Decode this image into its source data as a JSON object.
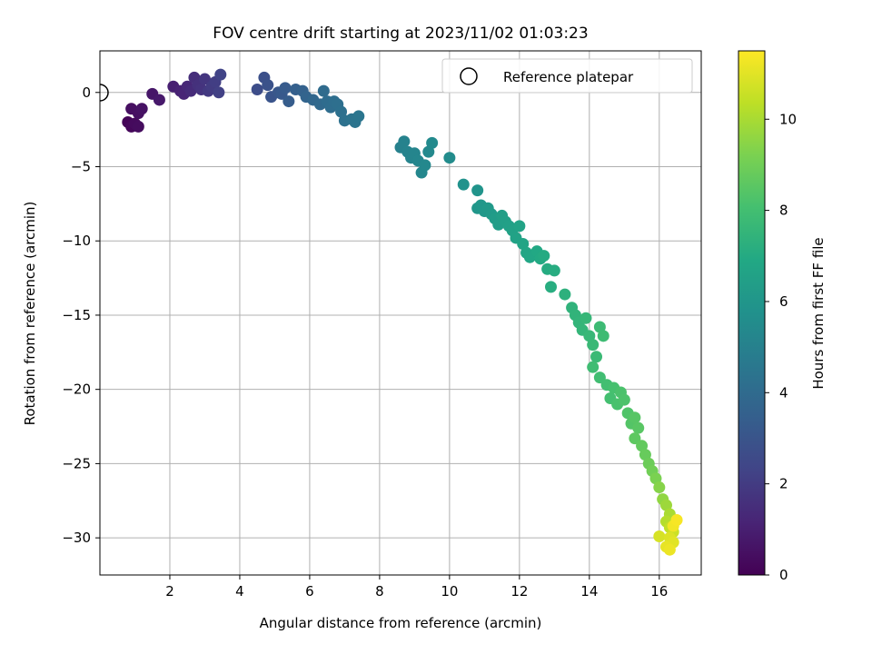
{
  "chart_data": {
    "type": "scatter",
    "title": "FOV centre drift starting at 2023/11/02 01:03:23",
    "xlabel": "Angular distance from reference (arcmin)",
    "ylabel": "Rotation from reference (arcmin)",
    "xlim": [
      0,
      17.2
    ],
    "ylim": [
      -32.5,
      2.8
    ],
    "xticks": [
      2,
      4,
      6,
      8,
      10,
      12,
      14,
      16
    ],
    "yticks": [
      0,
      -5,
      -10,
      -15,
      -20,
      -25,
      -30
    ],
    "grid": true,
    "legend": {
      "position": "top-right",
      "entries": [
        "Reference platepar"
      ]
    },
    "reference_point": {
      "x": 0,
      "y": 0
    },
    "colorbar": {
      "label": "Hours from first FF file",
      "range": [
        0,
        11.5
      ],
      "ticks": [
        0,
        2,
        4,
        6,
        8,
        10
      ],
      "colormap": "viridis"
    },
    "series": [
      {
        "points": [
          {
            "x": 0.8,
            "y": -2.0,
            "t": 0.1
          },
          {
            "x": 0.9,
            "y": -2.3,
            "t": 0.2
          },
          {
            "x": 1.0,
            "y": -2.1,
            "t": 0.3
          },
          {
            "x": 1.1,
            "y": -2.3,
            "t": 0.35
          },
          {
            "x": 0.9,
            "y": -1.1,
            "t": 0.45
          },
          {
            "x": 1.1,
            "y": -1.4,
            "t": 0.5
          },
          {
            "x": 1.2,
            "y": -1.1,
            "t": 0.55
          },
          {
            "x": 1.5,
            "y": -0.1,
            "t": 0.7
          },
          {
            "x": 1.7,
            "y": -0.5,
            "t": 0.8
          },
          {
            "x": 2.1,
            "y": 0.4,
            "t": 1.0
          },
          {
            "x": 2.3,
            "y": 0.1,
            "t": 1.1
          },
          {
            "x": 2.4,
            "y": -0.1,
            "t": 1.2
          },
          {
            "x": 2.5,
            "y": 0.4,
            "t": 1.3
          },
          {
            "x": 2.6,
            "y": 0.1,
            "t": 1.4
          },
          {
            "x": 2.7,
            "y": 1.0,
            "t": 1.5
          },
          {
            "x": 2.8,
            "y": 0.5,
            "t": 1.6
          },
          {
            "x": 2.9,
            "y": 0.2,
            "t": 1.7
          },
          {
            "x": 3.0,
            "y": 0.9,
            "t": 1.8
          },
          {
            "x": 3.1,
            "y": 0.1,
            "t": 1.9
          },
          {
            "x": 3.2,
            "y": 0.4,
            "t": 2.0
          },
          {
            "x": 3.3,
            "y": 0.7,
            "t": 2.1
          },
          {
            "x": 3.4,
            "y": 0.0,
            "t": 2.2
          },
          {
            "x": 3.45,
            "y": 1.2,
            "t": 2.3
          },
          {
            "x": 4.5,
            "y": 0.2,
            "t": 2.7
          },
          {
            "x": 4.7,
            "y": 1.0,
            "t": 2.8
          },
          {
            "x": 4.8,
            "y": 0.5,
            "t": 2.9
          },
          {
            "x": 4.9,
            "y": -0.3,
            "t": 3.0
          },
          {
            "x": 5.1,
            "y": 0.0,
            "t": 3.1
          },
          {
            "x": 5.2,
            "y": -0.1,
            "t": 3.2
          },
          {
            "x": 5.3,
            "y": 0.3,
            "t": 3.3
          },
          {
            "x": 5.4,
            "y": -0.6,
            "t": 3.35
          },
          {
            "x": 5.6,
            "y": 0.2,
            "t": 3.5
          },
          {
            "x": 5.8,
            "y": 0.1,
            "t": 3.6
          },
          {
            "x": 5.9,
            "y": -0.3,
            "t": 3.7
          },
          {
            "x": 6.1,
            "y": -0.5,
            "t": 3.8
          },
          {
            "x": 6.3,
            "y": -0.8,
            "t": 3.9
          },
          {
            "x": 6.4,
            "y": 0.1,
            "t": 4.0
          },
          {
            "x": 6.5,
            "y": -0.6,
            "t": 4.05
          },
          {
            "x": 6.6,
            "y": -1.0,
            "t": 4.1
          },
          {
            "x": 6.7,
            "y": -0.6,
            "t": 4.15
          },
          {
            "x": 6.8,
            "y": -0.8,
            "t": 4.2
          },
          {
            "x": 6.9,
            "y": -1.3,
            "t": 4.25
          },
          {
            "x": 7.0,
            "y": -1.9,
            "t": 4.3
          },
          {
            "x": 7.2,
            "y": -1.8,
            "t": 4.35
          },
          {
            "x": 7.3,
            "y": -2.0,
            "t": 4.4
          },
          {
            "x": 7.4,
            "y": -1.6,
            "t": 4.45
          },
          {
            "x": 8.6,
            "y": -3.7,
            "t": 5.0
          },
          {
            "x": 8.7,
            "y": -3.3,
            "t": 5.05
          },
          {
            "x": 8.8,
            "y": -4.0,
            "t": 5.1
          },
          {
            "x": 8.9,
            "y": -4.4,
            "t": 5.15
          },
          {
            "x": 9.0,
            "y": -4.1,
            "t": 5.2
          },
          {
            "x": 9.1,
            "y": -4.6,
            "t": 5.25
          },
          {
            "x": 9.2,
            "y": -5.4,
            "t": 5.3
          },
          {
            "x": 9.3,
            "y": -4.9,
            "t": 5.35
          },
          {
            "x": 9.4,
            "y": -4.0,
            "t": 5.4
          },
          {
            "x": 9.5,
            "y": -3.4,
            "t": 5.45
          },
          {
            "x": 10.0,
            "y": -4.4,
            "t": 5.5
          },
          {
            "x": 10.4,
            "y": -6.2,
            "t": 5.8
          },
          {
            "x": 10.8,
            "y": -6.6,
            "t": 5.9
          },
          {
            "x": 10.8,
            "y": -7.8,
            "t": 6.0
          },
          {
            "x": 10.9,
            "y": -7.6,
            "t": 6.05
          },
          {
            "x": 11.0,
            "y": -8.0,
            "t": 6.1
          },
          {
            "x": 11.1,
            "y": -7.8,
            "t": 6.15
          },
          {
            "x": 11.2,
            "y": -8.2,
            "t": 6.2
          },
          {
            "x": 11.3,
            "y": -8.5,
            "t": 6.3
          },
          {
            "x": 11.4,
            "y": -8.9,
            "t": 6.35
          },
          {
            "x": 11.5,
            "y": -8.3,
            "t": 6.4
          },
          {
            "x": 11.6,
            "y": -8.7,
            "t": 6.45
          },
          {
            "x": 11.7,
            "y": -9.0,
            "t": 6.5
          },
          {
            "x": 11.8,
            "y": -9.3,
            "t": 6.55
          },
          {
            "x": 11.9,
            "y": -9.8,
            "t": 6.6
          },
          {
            "x": 12.0,
            "y": -9.0,
            "t": 6.65
          },
          {
            "x": 12.1,
            "y": -10.2,
            "t": 6.7
          },
          {
            "x": 12.2,
            "y": -10.8,
            "t": 6.75
          },
          {
            "x": 12.3,
            "y": -11.1,
            "t": 6.8
          },
          {
            "x": 12.5,
            "y": -10.7,
            "t": 6.9
          },
          {
            "x": 12.6,
            "y": -11.2,
            "t": 6.95
          },
          {
            "x": 12.7,
            "y": -11.0,
            "t": 7.0
          },
          {
            "x": 12.8,
            "y": -11.9,
            "t": 7.05
          },
          {
            "x": 13.0,
            "y": -12.0,
            "t": 7.1
          },
          {
            "x": 12.9,
            "y": -13.1,
            "t": 7.15
          },
          {
            "x": 13.3,
            "y": -13.6,
            "t": 7.3
          },
          {
            "x": 13.5,
            "y": -14.5,
            "t": 7.4
          },
          {
            "x": 13.6,
            "y": -15.0,
            "t": 7.45
          },
          {
            "x": 13.7,
            "y": -15.5,
            "t": 7.5
          },
          {
            "x": 13.8,
            "y": -16.0,
            "t": 7.55
          },
          {
            "x": 13.9,
            "y": -15.2,
            "t": 7.6
          },
          {
            "x": 14.0,
            "y": -16.4,
            "t": 7.65
          },
          {
            "x": 14.1,
            "y": -17.0,
            "t": 7.7
          },
          {
            "x": 14.2,
            "y": -17.8,
            "t": 7.75
          },
          {
            "x": 14.3,
            "y": -15.8,
            "t": 7.8
          },
          {
            "x": 14.4,
            "y": -16.4,
            "t": 7.85
          },
          {
            "x": 14.1,
            "y": -18.5,
            "t": 7.9
          },
          {
            "x": 14.3,
            "y": -19.2,
            "t": 7.95
          },
          {
            "x": 14.5,
            "y": -19.7,
            "t": 8.0
          },
          {
            "x": 14.6,
            "y": -20.6,
            "t": 8.05
          },
          {
            "x": 14.7,
            "y": -19.9,
            "t": 8.1
          },
          {
            "x": 14.8,
            "y": -21.0,
            "t": 8.15
          },
          {
            "x": 14.9,
            "y": -20.2,
            "t": 8.2
          },
          {
            "x": 15.0,
            "y": -20.7,
            "t": 8.25
          },
          {
            "x": 15.1,
            "y": -21.6,
            "t": 8.3
          },
          {
            "x": 15.2,
            "y": -22.3,
            "t": 8.4
          },
          {
            "x": 15.3,
            "y": -21.9,
            "t": 8.45
          },
          {
            "x": 15.4,
            "y": -22.6,
            "t": 8.5
          },
          {
            "x": 15.3,
            "y": -23.3,
            "t": 8.6
          },
          {
            "x": 15.5,
            "y": -23.8,
            "t": 8.7
          },
          {
            "x": 15.6,
            "y": -24.4,
            "t": 8.8
          },
          {
            "x": 15.7,
            "y": -25.0,
            "t": 8.9
          },
          {
            "x": 15.8,
            "y": -25.5,
            "t": 9.0
          },
          {
            "x": 15.9,
            "y": -26.0,
            "t": 9.2
          },
          {
            "x": 16.0,
            "y": -26.6,
            "t": 9.4
          },
          {
            "x": 16.1,
            "y": -27.4,
            "t": 9.6
          },
          {
            "x": 16.2,
            "y": -27.8,
            "t": 9.8
          },
          {
            "x": 16.3,
            "y": -28.4,
            "t": 10.0
          },
          {
            "x": 16.2,
            "y": -28.9,
            "t": 10.2
          },
          {
            "x": 16.3,
            "y": -29.3,
            "t": 10.4
          },
          {
            "x": 16.4,
            "y": -29.6,
            "t": 10.6
          },
          {
            "x": 16.0,
            "y": -29.9,
            "t": 10.8
          },
          {
            "x": 16.3,
            "y": -30.0,
            "t": 10.9
          },
          {
            "x": 16.4,
            "y": -30.3,
            "t": 11.0
          },
          {
            "x": 16.2,
            "y": -30.6,
            "t": 11.1
          },
          {
            "x": 16.3,
            "y": -30.8,
            "t": 11.2
          },
          {
            "x": 16.4,
            "y": -29.2,
            "t": 11.3
          },
          {
            "x": 16.5,
            "y": -28.8,
            "t": 11.4
          }
        ]
      }
    ]
  }
}
